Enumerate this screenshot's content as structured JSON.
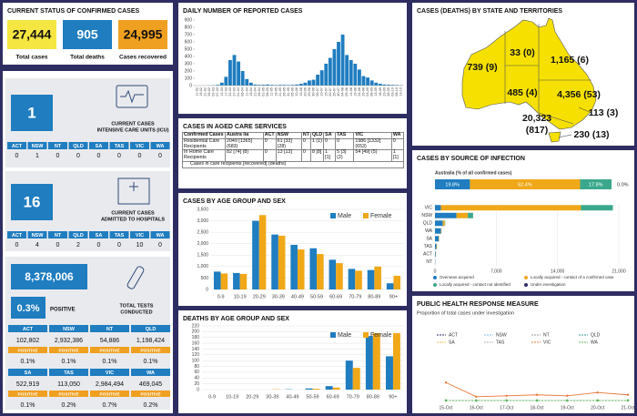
{
  "status": {
    "title": "CURRENT STATUS OF CONFIRMED CASES",
    "items": [
      {
        "value": "27,444",
        "label": "Total cases"
      },
      {
        "value": "905",
        "label": "Total deaths"
      },
      {
        "value": "24,995",
        "label": "Cases recovered"
      }
    ]
  },
  "icu": {
    "value": "1",
    "label_lines": [
      "CURRENT CASES",
      "INTENSIVE CARE UNITS (ICU)"
    ],
    "states": [
      "ACT",
      "NSW",
      "NT",
      "QLD",
      "SA",
      "TAS",
      "VIC",
      "WA"
    ],
    "values": [
      0,
      1,
      0,
      0,
      0,
      0,
      0,
      0
    ]
  },
  "hospital": {
    "value": "16",
    "label_lines": [
      "CURRENT CASES",
      "ADMITTED TO HOSPITALS"
    ],
    "states": [
      "ACT",
      "NSW",
      "NT",
      "QLD",
      "SA",
      "TAS",
      "VIC",
      "WA"
    ],
    "values": [
      0,
      4,
      0,
      2,
      0,
      0,
      10,
      0
    ]
  },
  "tests": {
    "value": "8,378,006",
    "positive": "0.3%",
    "positive_label": "POSITIVE",
    "label_lines": [
      "TOTAL TESTS",
      "CONDUCTED"
    ],
    "states": [
      {
        "name": "ACT",
        "tests": "102,802",
        "badge": "POSITIVE",
        "positive": "0.1%"
      },
      {
        "name": "NSW",
        "tests": "2,932,386",
        "badge": "POSITIVE",
        "positive": "0.1%"
      },
      {
        "name": "NT",
        "tests": "54,886",
        "badge": "POSITIVE",
        "positive": "0.1%"
      },
      {
        "name": "QLD",
        "tests": "1,198,424",
        "badge": "POSITIVE",
        "positive": "0.1%"
      },
      {
        "name": "SA",
        "tests": "522,919",
        "badge": "POSITIVE",
        "positive": "0.1%"
      },
      {
        "name": "TAS",
        "tests": "113,050",
        "badge": "POSITIVE",
        "positive": "0.2%"
      },
      {
        "name": "VIC",
        "tests": "2,984,494",
        "badge": "POSITIVE",
        "positive": "0.7%"
      },
      {
        "name": "WA",
        "tests": "469,045",
        "badge": "POSITIVE",
        "positive": "0.2%"
      }
    ]
  },
  "aged_care": {
    "title": "CASES IN AGED CARE SERVICES",
    "header": [
      "Confirmed Cases",
      "Austra lia",
      "ACT",
      "NSW",
      "NT",
      "QLD",
      "SA",
      "TAS",
      "VIC",
      "WA"
    ],
    "rows": [
      [
        "Residential Care Recipients",
        "2049 [1365] (683)",
        "0",
        "61 [33] (28)",
        "0",
        "1 (1)",
        "0",
        "0",
        "1986 [1332] (653)",
        "0"
      ],
      [
        "In Home Care Recipients",
        "82 [74] (8)",
        "0",
        "13 [13]",
        "0",
        "8 [8]",
        "1 [1]",
        "5 [3] (2)",
        "54 [49] (5)",
        "1 [1]"
      ]
    ],
    "footnote": "Cases in care recipients [recovered] (deaths)"
  },
  "map": {
    "title": "CASES (DEATHS) BY STATE AND TERRITORIES",
    "labels": [
      "739 (9)",
      "33 (0)",
      "1,165 (6)",
      "485 (4)",
      "4,356 (53)",
      "20,323",
      "(817)",
      "113 (3)",
      "230 (13)"
    ]
  },
  "chart_data": [
    {
      "type": "bar",
      "title": "DAILY NUMBER OF REPORTED CASES",
      "color": "#1f7dc0",
      "categories": [
        "11-02",
        "16-02",
        "21-02",
        "26-02",
        "02-03",
        "07-03",
        "12-03",
        "17-03",
        "22-03",
        "27-03",
        "01-04",
        "06-04",
        "11-04",
        "16-04",
        "21-04",
        "26-04",
        "01-05",
        "06-05",
        "11-05",
        "16-05",
        "21-05",
        "26-05",
        "31-05",
        "05-06",
        "10-06",
        "15-06",
        "20-06",
        "25-06",
        "30-06",
        "05-07",
        "10-07",
        "15-07",
        "20-07",
        "25-07",
        "30-07",
        "04-08",
        "09-08",
        "14-08",
        "19-08",
        "24-08",
        "29-08",
        "03-09",
        "08-09",
        "13-09",
        "18-09",
        "23-09",
        "28-09",
        "03-10",
        "08-10",
        "13-10"
      ],
      "values": [
        0,
        0,
        0,
        2,
        5,
        10,
        40,
        120,
        350,
        420,
        330,
        200,
        90,
        40,
        15,
        10,
        12,
        15,
        10,
        8,
        10,
        10,
        8,
        10,
        15,
        25,
        40,
        70,
        80,
        150,
        210,
        300,
        380,
        500,
        600,
        700,
        420,
        350,
        300,
        220,
        130,
        110,
        70,
        40,
        25,
        15,
        12,
        10,
        8,
        5
      ],
      "ylim": [
        0,
        900
      ],
      "yticks": [
        0,
        100,
        200,
        300,
        400,
        500,
        600,
        700,
        800,
        900
      ]
    },
    {
      "type": "grouped_bar",
      "title": "CASES BY AGE GROUP AND SEX",
      "categories": [
        "0-9",
        "10-19",
        "20-29",
        "30-39",
        "40-49",
        "50-59",
        "60-69",
        "70-79",
        "80-89",
        "90+"
      ],
      "series": [
        {
          "name": "Male",
          "color": "#1f7dc0",
          "values": [
            780,
            720,
            3000,
            2400,
            1950,
            1800,
            1300,
            900,
            850,
            270
          ]
        },
        {
          "name": "Female",
          "color": "#f0a818",
          "values": [
            700,
            680,
            3250,
            2350,
            1750,
            1550,
            1150,
            820,
            1000,
            600
          ]
        }
      ],
      "ylim": [
        0,
        3500
      ],
      "yticks": [
        0,
        500,
        {
          "value": 1000,
          "label": "1,000"
        },
        {
          "value": 1500,
          "label": "1,500"
        },
        {
          "value": 2000,
          "label": "2,000"
        },
        {
          "value": 2500,
          "label": "2,500"
        },
        {
          "value": 3000,
          "label": "3,000"
        },
        {
          "value": 3500,
          "label": "3,500"
        }
      ],
      "grid": true
    },
    {
      "type": "grouped_bar",
      "title": "DEATHS BY AGE GROUP AND SEX",
      "categories": [
        "0-9",
        "10-19",
        "20-29",
        "30-39",
        "40-49",
        "50-59",
        "60-69",
        "70-79",
        "80-89",
        "90+"
      ],
      "series": [
        {
          "name": "Male",
          "color": "#1f7dc0",
          "values": [
            0,
            0,
            0,
            0,
            1,
            4,
            12,
            100,
            185,
            115
          ]
        },
        {
          "name": "Female",
          "color": "#f0a818",
          "values": [
            0,
            0,
            0,
            1,
            0,
            3,
            7,
            75,
            195,
            195
          ]
        }
      ],
      "ylim": [
        0,
        220
      ],
      "yticks": [
        0,
        20,
        40,
        60,
        80,
        100,
        120,
        140,
        160,
        180,
        200,
        220
      ],
      "grid": true
    },
    {
      "type": "stacked_barh",
      "title": "CASES BY SOURCE OF INFECTION",
      "summary": {
        "label": "Australia (% of all confirmed cases)",
        "values": [
          19.8,
          62.4,
          17.8,
          0.0
        ],
        "value_labels": [
          "19.8%",
          "62.4%",
          "17.8%",
          "0.0%"
        ]
      },
      "categories": [
        "VIC",
        "NSW",
        "QLD",
        "WA",
        "SA",
        "TAS",
        "ACT",
        "NT"
      ],
      "series": [
        {
          "name": "Overseas acquired",
          "color": "#1f7dc0",
          "values": [
            670,
            2450,
            900,
            690,
            440,
            170,
            80,
            30
          ]
        },
        {
          "name": "Locally acquired - contact of a confirmed case",
          "color": "#f0a818",
          "values": [
            16000,
            1300,
            220,
            45,
            40,
            55,
            30,
            3
          ]
        },
        {
          "name": "Locally acquired - contact not identified",
          "color": "#3aa88c",
          "values": [
            3650,
            600,
            45,
            4,
            5,
            5,
            3,
            0
          ]
        },
        {
          "name": "Under investigation",
          "color": "#2e2d62",
          "values": [
            3,
            6,
            0,
            0,
            0,
            0,
            0,
            0
          ]
        }
      ],
      "xlim": [
        0,
        21000
      ],
      "xticks": [
        0,
        {
          "value": 7000,
          "label": "7,000"
        },
        {
          "value": 14000,
          "label": "14,000"
        },
        {
          "value": 21000,
          "label": "21,000"
        }
      ]
    },
    {
      "type": "line",
      "title": "PUBLIC HEALTH RESPONSE MEASURE",
      "subtitle": "Proportion of total cases under investigation",
      "x": [
        "15-Oct",
        "16-Oct",
        "17-Oct",
        "18-Oct",
        "19-Oct",
        "20-Oct",
        "21-Oct"
      ],
      "series": [
        {
          "name": "ACT",
          "color": "#2e2d62",
          "values": [
            0,
            0,
            0,
            0,
            0,
            0,
            0
          ]
        },
        {
          "name": "NSW",
          "color": "#7fb8e0",
          "values": [
            0,
            0,
            0,
            0,
            0,
            0,
            0
          ]
        },
        {
          "name": "NT",
          "color": "#999999",
          "values": [
            0,
            0,
            0,
            0,
            0,
            0,
            0
          ]
        },
        {
          "name": "QLD",
          "color": "#2a9d8f",
          "values": [
            0,
            0,
            0,
            0,
            0,
            0,
            0
          ]
        },
        {
          "name": "SA",
          "color": "#e8c547",
          "values": [
            0,
            0,
            0,
            0,
            0,
            0,
            0
          ]
        },
        {
          "name": "TAS",
          "color": "#b0b0b0",
          "values": [
            0,
            0,
            0,
            0,
            0,
            0,
            0
          ]
        },
        {
          "name": "VIC",
          "color": "#e8793a",
          "values": [
            0.38,
            0.08,
            0.1,
            0.12,
            0.1,
            0.17,
            0.12
          ]
        },
        {
          "name": "WA",
          "color": "#5cb85c",
          "values": [
            0,
            0,
            0,
            0,
            0,
            0,
            0
          ]
        }
      ],
      "ylim": [
        0,
        1
      ]
    }
  ]
}
